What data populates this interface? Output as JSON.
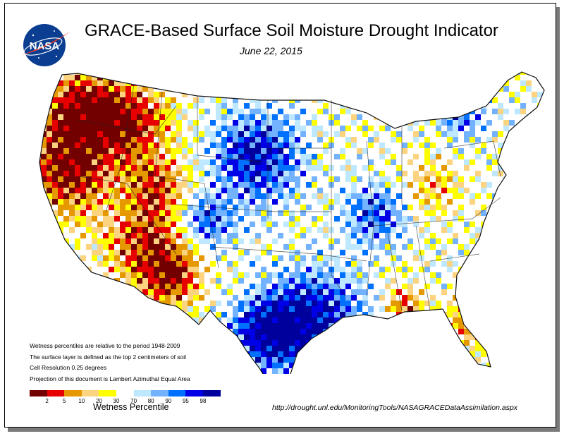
{
  "title": "GRACE-Based Surface Soil  Moisture Drought Indicator",
  "date": "June 22, 2015",
  "logo_text": "NASA",
  "notes": [
    "Wetness percentiles are relative to the period 1948-2009",
    "The surface layer is defined as the top 2 centimeters of soil",
    "Cell Resolution 0.25 degrees",
    "Projection of this document is Lambert Azimuthal Equal Area"
  ],
  "legend": {
    "title": "Wetness Percentile",
    "ticks": [
      "2",
      "5",
      "10",
      "20",
      "30",
      "70",
      "80",
      "90",
      "95",
      "98"
    ],
    "colors": [
      "#730000",
      "#e60000",
      "#e69800",
      "#fcd37f",
      "#ffff00",
      "#ffffff",
      "#bee8ff",
      "#73b2ff",
      "#0070ff",
      "#0000e6",
      "#00009c"
    ]
  },
  "url": "http://drought.unl.edu/MonitoringTools/NASAGRACEDataAssimilation.aspx"
}
